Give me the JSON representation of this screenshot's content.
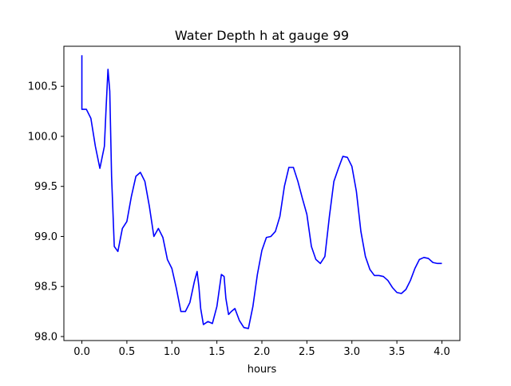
{
  "chart_data": {
    "type": "line",
    "title": "Water Depth h at gauge 99",
    "xlabel": "hours",
    "ylabel": "",
    "xlim": [
      -0.2,
      4.2
    ],
    "ylim": [
      97.96,
      100.9
    ],
    "xticks": [
      0.0,
      0.5,
      1.0,
      1.5,
      2.0,
      2.5,
      3.0,
      3.5,
      4.0
    ],
    "xtick_labels": [
      "0.0",
      "0.5",
      "1.0",
      "1.5",
      "2.0",
      "2.5",
      "3.0",
      "3.5",
      "4.0"
    ],
    "yticks": [
      98.0,
      98.5,
      99.0,
      99.5,
      100.0,
      100.5
    ],
    "ytick_labels": [
      "98.0",
      "98.5",
      "99.0",
      "99.5",
      "100.0",
      "100.5"
    ],
    "grid": false,
    "series": [
      {
        "name": "",
        "color": "#0000ff",
        "x": [
          0.0,
          0.0,
          0.0,
          0.05,
          0.1,
          0.15,
          0.2,
          0.25,
          0.27,
          0.29,
          0.31,
          0.33,
          0.36,
          0.4,
          0.45,
          0.5,
          0.55,
          0.6,
          0.65,
          0.7,
          0.75,
          0.8,
          0.85,
          0.9,
          0.95,
          1.0,
          1.05,
          1.1,
          1.15,
          1.2,
          1.25,
          1.28,
          1.3,
          1.32,
          1.35,
          1.4,
          1.45,
          1.5,
          1.55,
          1.58,
          1.6,
          1.63,
          1.66,
          1.7,
          1.75,
          1.8,
          1.85,
          1.9,
          1.95,
          2.0,
          2.05,
          2.1,
          2.15,
          2.2,
          2.25,
          2.3,
          2.35,
          2.4,
          2.45,
          2.5,
          2.55,
          2.6,
          2.65,
          2.7,
          2.75,
          2.8,
          2.85,
          2.9,
          2.95,
          3.0,
          3.05,
          3.1,
          3.15,
          3.2,
          3.25,
          3.3,
          3.35,
          3.4,
          3.45,
          3.5,
          3.55,
          3.6,
          3.65,
          3.7,
          3.75,
          3.8,
          3.85,
          3.9,
          3.95,
          4.0
        ],
        "values": [
          100.81,
          100.27,
          100.27,
          100.27,
          100.18,
          99.9,
          99.68,
          99.9,
          100.3,
          100.67,
          100.45,
          99.6,
          98.9,
          98.85,
          99.08,
          99.15,
          99.4,
          99.6,
          99.64,
          99.55,
          99.3,
          99.0,
          99.08,
          98.99,
          98.77,
          98.68,
          98.48,
          98.25,
          98.25,
          98.34,
          98.55,
          98.65,
          98.5,
          98.28,
          98.12,
          98.15,
          98.13,
          98.3,
          98.62,
          98.6,
          98.38,
          98.22,
          98.25,
          98.28,
          98.16,
          98.09,
          98.08,
          98.3,
          98.62,
          98.86,
          98.99,
          99.0,
          99.05,
          99.2,
          99.5,
          99.69,
          99.69,
          99.55,
          99.38,
          99.22,
          98.9,
          98.77,
          98.73,
          98.8,
          99.2,
          99.55,
          99.68,
          99.8,
          99.79,
          99.7,
          99.45,
          99.05,
          98.8,
          98.67,
          98.61,
          98.61,
          98.6,
          98.56,
          98.49,
          98.44,
          98.43,
          98.47,
          98.56,
          98.68,
          98.77,
          98.79,
          98.78,
          98.74,
          98.73,
          98.73
        ]
      }
    ]
  }
}
